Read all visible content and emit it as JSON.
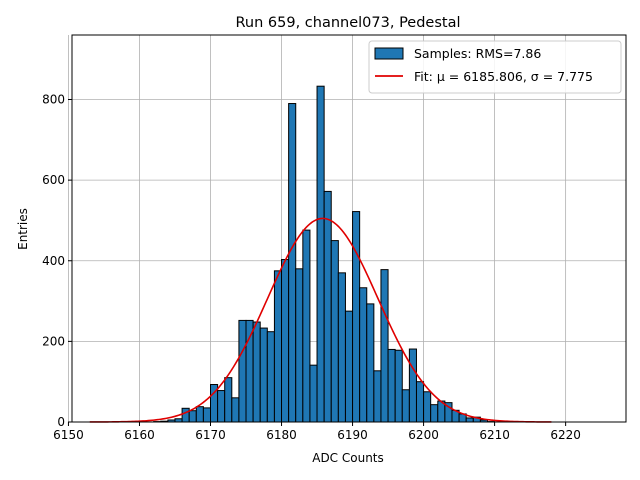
{
  "chart_data": {
    "type": "bar",
    "title": "Run 659, channel073, Pedestal",
    "xlabel": "ADC Counts",
    "ylabel": "Entries",
    "xlim": [
      6150.5,
      6228.5
    ],
    "ylim": [
      0,
      960
    ],
    "xticks": [
      6150,
      6160,
      6170,
      6180,
      6190,
      6200,
      6210,
      6220
    ],
    "yticks": [
      0,
      200,
      400,
      600,
      800
    ],
    "grid": true,
    "legend_position": "top-right",
    "bin_width": 1,
    "bin_starts": [
      6153,
      6154,
      6155,
      6156,
      6157,
      6158,
      6159,
      6160,
      6161,
      6162,
      6163,
      6164,
      6165,
      6166,
      6167,
      6168,
      6169,
      6170,
      6171,
      6172,
      6173,
      6174,
      6175,
      6176,
      6177,
      6178,
      6179,
      6180,
      6181,
      6182,
      6183,
      6184,
      6185,
      6186,
      6187,
      6188,
      6189,
      6190,
      6191,
      6192,
      6193,
      6194,
      6195,
      6196,
      6197,
      6198,
      6199,
      6200,
      6201,
      6202,
      6203,
      6204,
      6205,
      6206,
      6207,
      6208,
      6209,
      6210,
      6211,
      6212,
      6213
    ],
    "counts": [
      0,
      0,
      0,
      0,
      0,
      0,
      0,
      0,
      0,
      1,
      2,
      5,
      8,
      34,
      28,
      38,
      35,
      93,
      78,
      110,
      60,
      252,
      252,
      248,
      233,
      224,
      375,
      403,
      790,
      380,
      476,
      141,
      833,
      572,
      450,
      370,
      275,
      522,
      333,
      293,
      127,
      378,
      180,
      178,
      80,
      181,
      100,
      75,
      43,
      52,
      48,
      29,
      20,
      10,
      12,
      5,
      1,
      0,
      0,
      0,
      0
    ],
    "series": [
      {
        "name": "Samples: RMS=7.86",
        "kind": "histogram",
        "color": "#1f77b4",
        "edgecolor": "#000000"
      },
      {
        "name": "Fit: μ = 6185.806, σ = 7.775",
        "kind": "gaussian-line",
        "color": "#e00000",
        "mu": 6185.806,
        "sigma": 7.775,
        "amplitude": 505,
        "x_range": [
          6153,
          6218
        ]
      }
    ]
  }
}
